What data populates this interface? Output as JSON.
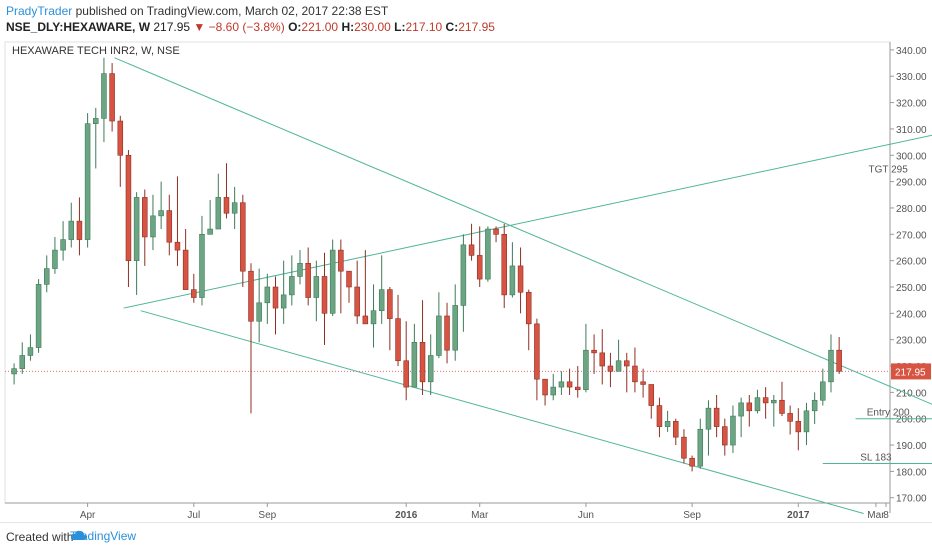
{
  "header": {
    "author": "PradyTrader",
    "published": "published on TradingView.com, March 02, 2017 22:38 EST",
    "symbol": "NSE_DLY:HEXAWARE, W",
    "last": "217.95",
    "change": "−8.60 (−3.8%)",
    "open_label": "O:",
    "open": "221.00",
    "high_label": "H:",
    "high": "230.00",
    "low_label": "L:",
    "low": "217.10",
    "close_label": "C:",
    "close": "217.95"
  },
  "chart_data": {
    "type": "candlestick",
    "title": "HEXAWARE TECH INR2, W, NSE",
    "ylim": [
      168,
      343
    ],
    "y_ticks": [
      "340.00",
      "330.00",
      "320.00",
      "310.00",
      "300.00",
      "290.00",
      "280.00",
      "270.00",
      "260.00",
      "250.00",
      "240.00",
      "230.00",
      "220.00",
      "210.00",
      "200.00",
      "190.00",
      "180.00",
      "170.00"
    ],
    "x_ticks": [
      "Apr",
      "Jul",
      "Sep",
      "2016",
      "Mar",
      "Jun",
      "Sep",
      "2017",
      "Mar",
      "8"
    ],
    "last_price_label": "217.95",
    "colors": {
      "up": "#6ba583",
      "down": "#d75442",
      "trendline": "#4fb59a",
      "last_line": "#e07070"
    },
    "candles": [
      [
        217,
        219,
        221,
        213
      ],
      [
        219,
        224,
        229,
        217
      ],
      [
        224,
        227,
        232,
        222
      ],
      [
        227,
        251,
        253,
        225
      ],
      [
        251,
        257,
        262,
        248
      ],
      [
        257,
        264,
        269,
        255
      ],
      [
        264,
        268,
        275,
        260
      ],
      [
        268,
        275,
        282,
        265
      ],
      [
        275,
        268,
        284,
        262
      ],
      [
        268,
        312,
        316,
        265
      ],
      [
        312,
        314,
        318,
        295
      ],
      [
        314,
        331,
        337,
        305
      ],
      [
        331,
        313,
        335,
        309
      ],
      [
        313,
        300,
        315,
        288
      ],
      [
        300,
        260,
        302,
        250
      ],
      [
        260,
        284,
        286,
        247
      ],
      [
        284,
        269,
        287,
        258
      ],
      [
        269,
        277,
        285,
        264
      ],
      [
        277,
        279,
        290,
        272
      ],
      [
        279,
        267,
        285,
        262
      ],
      [
        267,
        264,
        292,
        258
      ],
      [
        264,
        249,
        272,
        252
      ],
      [
        249,
        246,
        255,
        244
      ],
      [
        246,
        270,
        277,
        243
      ],
      [
        270,
        272,
        283,
        270
      ],
      [
        272,
        284,
        293,
        278
      ],
      [
        284,
        278,
        297,
        276
      ],
      [
        278,
        282,
        288,
        272
      ],
      [
        282,
        256,
        285,
        250
      ],
      [
        256,
        237,
        259,
        202
      ],
      [
        237,
        244,
        257,
        229
      ],
      [
        244,
        250,
        255,
        236
      ],
      [
        250,
        242,
        254,
        232
      ],
      [
        242,
        247,
        260,
        236
      ],
      [
        247,
        254,
        262,
        243
      ],
      [
        254,
        259,
        264,
        251
      ],
      [
        259,
        246,
        265,
        243
      ],
      [
        246,
        254,
        260,
        237
      ],
      [
        254,
        240,
        263,
        228
      ],
      [
        240,
        264,
        268,
        239
      ],
      [
        264,
        256,
        268,
        240
      ],
      [
        256,
        250,
        256,
        244
      ],
      [
        250,
        239,
        260,
        236
      ],
      [
        239,
        236,
        264,
        236
      ],
      [
        236,
        241,
        251,
        227
      ],
      [
        241,
        249,
        262,
        236
      ],
      [
        249,
        238,
        250,
        226
      ],
      [
        238,
        222,
        247,
        220
      ],
      [
        222,
        212,
        237,
        207
      ],
      [
        212,
        229,
        236,
        216
      ],
      [
        229,
        214,
        245,
        209
      ],
      [
        214,
        224,
        232,
        209
      ],
      [
        224,
        239,
        248,
        223
      ],
      [
        239,
        226,
        244,
        221
      ],
      [
        226,
        243,
        251,
        222
      ],
      [
        243,
        266,
        270,
        233
      ],
      [
        266,
        262,
        274,
        260
      ],
      [
        262,
        253,
        273,
        250
      ],
      [
        253,
        272,
        273,
        252
      ],
      [
        272,
        270,
        273,
        267
      ],
      [
        270,
        247,
        274,
        242
      ],
      [
        247,
        258,
        267,
        246
      ],
      [
        258,
        248,
        265,
        240
      ],
      [
        248,
        236,
        249,
        226
      ],
      [
        236,
        215,
        238,
        207
      ],
      [
        215,
        209,
        212,
        205
      ],
      [
        209,
        212,
        217,
        207
      ],
      [
        212,
        214,
        218,
        209
      ],
      [
        214,
        212,
        219,
        209
      ],
      [
        212,
        211,
        220,
        208
      ],
      [
        211,
        226,
        236,
        210
      ],
      [
        226,
        225,
        232,
        217
      ],
      [
        225,
        220,
        234,
        213
      ],
      [
        220,
        218,
        225,
        212
      ],
      [
        218,
        222,
        230,
        218
      ],
      [
        222,
        220,
        225,
        210
      ],
      [
        220,
        214,
        227,
        210
      ],
      [
        214,
        213,
        219,
        208
      ],
      [
        213,
        205,
        212,
        200
      ],
      [
        205,
        197,
        208,
        193
      ],
      [
        197,
        199,
        203,
        195
      ],
      [
        199,
        193,
        200,
        190
      ],
      [
        193,
        185,
        196,
        183
      ],
      [
        185,
        182,
        186,
        180
      ],
      [
        182,
        196,
        200,
        181
      ],
      [
        196,
        204,
        207,
        186
      ],
      [
        204,
        197,
        209,
        193
      ],
      [
        197,
        190,
        200,
        186
      ],
      [
        190,
        201,
        205,
        187
      ],
      [
        201,
        206,
        208,
        193
      ],
      [
        206,
        203,
        209,
        197
      ],
      [
        203,
        208,
        211,
        202
      ],
      [
        208,
        206,
        212,
        200
      ],
      [
        206,
        207,
        209,
        197
      ],
      [
        207,
        202,
        214,
        201
      ],
      [
        202,
        199,
        205,
        194
      ],
      [
        199,
        195,
        204,
        188
      ],
      [
        195,
        203,
        206,
        190
      ],
      [
        203,
        207,
        210,
        198
      ],
      [
        207,
        214,
        219,
        205
      ],
      [
        214,
        226,
        232,
        210
      ],
      [
        226,
        218,
        231,
        217
      ]
    ],
    "trendlines": [
      {
        "from": [
          "Apr 2015",
          337
        ],
        "to": [
          "Mar 2017",
          204
        ]
      },
      {
        "from": [
          "Apr 2015",
          241
        ],
        "to": [
          "Mar 2017",
          164
        ]
      },
      {
        "from": [
          "Apr 2015",
          242
        ],
        "to": [
          "Mar 2017",
          310
        ]
      }
    ],
    "annotations": [
      {
        "text": "TGT 295",
        "price": 295
      },
      {
        "text": "Entry 200",
        "price": 200
      },
      {
        "text": "SL 183",
        "price": 183
      }
    ]
  },
  "footer": {
    "created_with": "Created with",
    "brand": "TradingView"
  }
}
